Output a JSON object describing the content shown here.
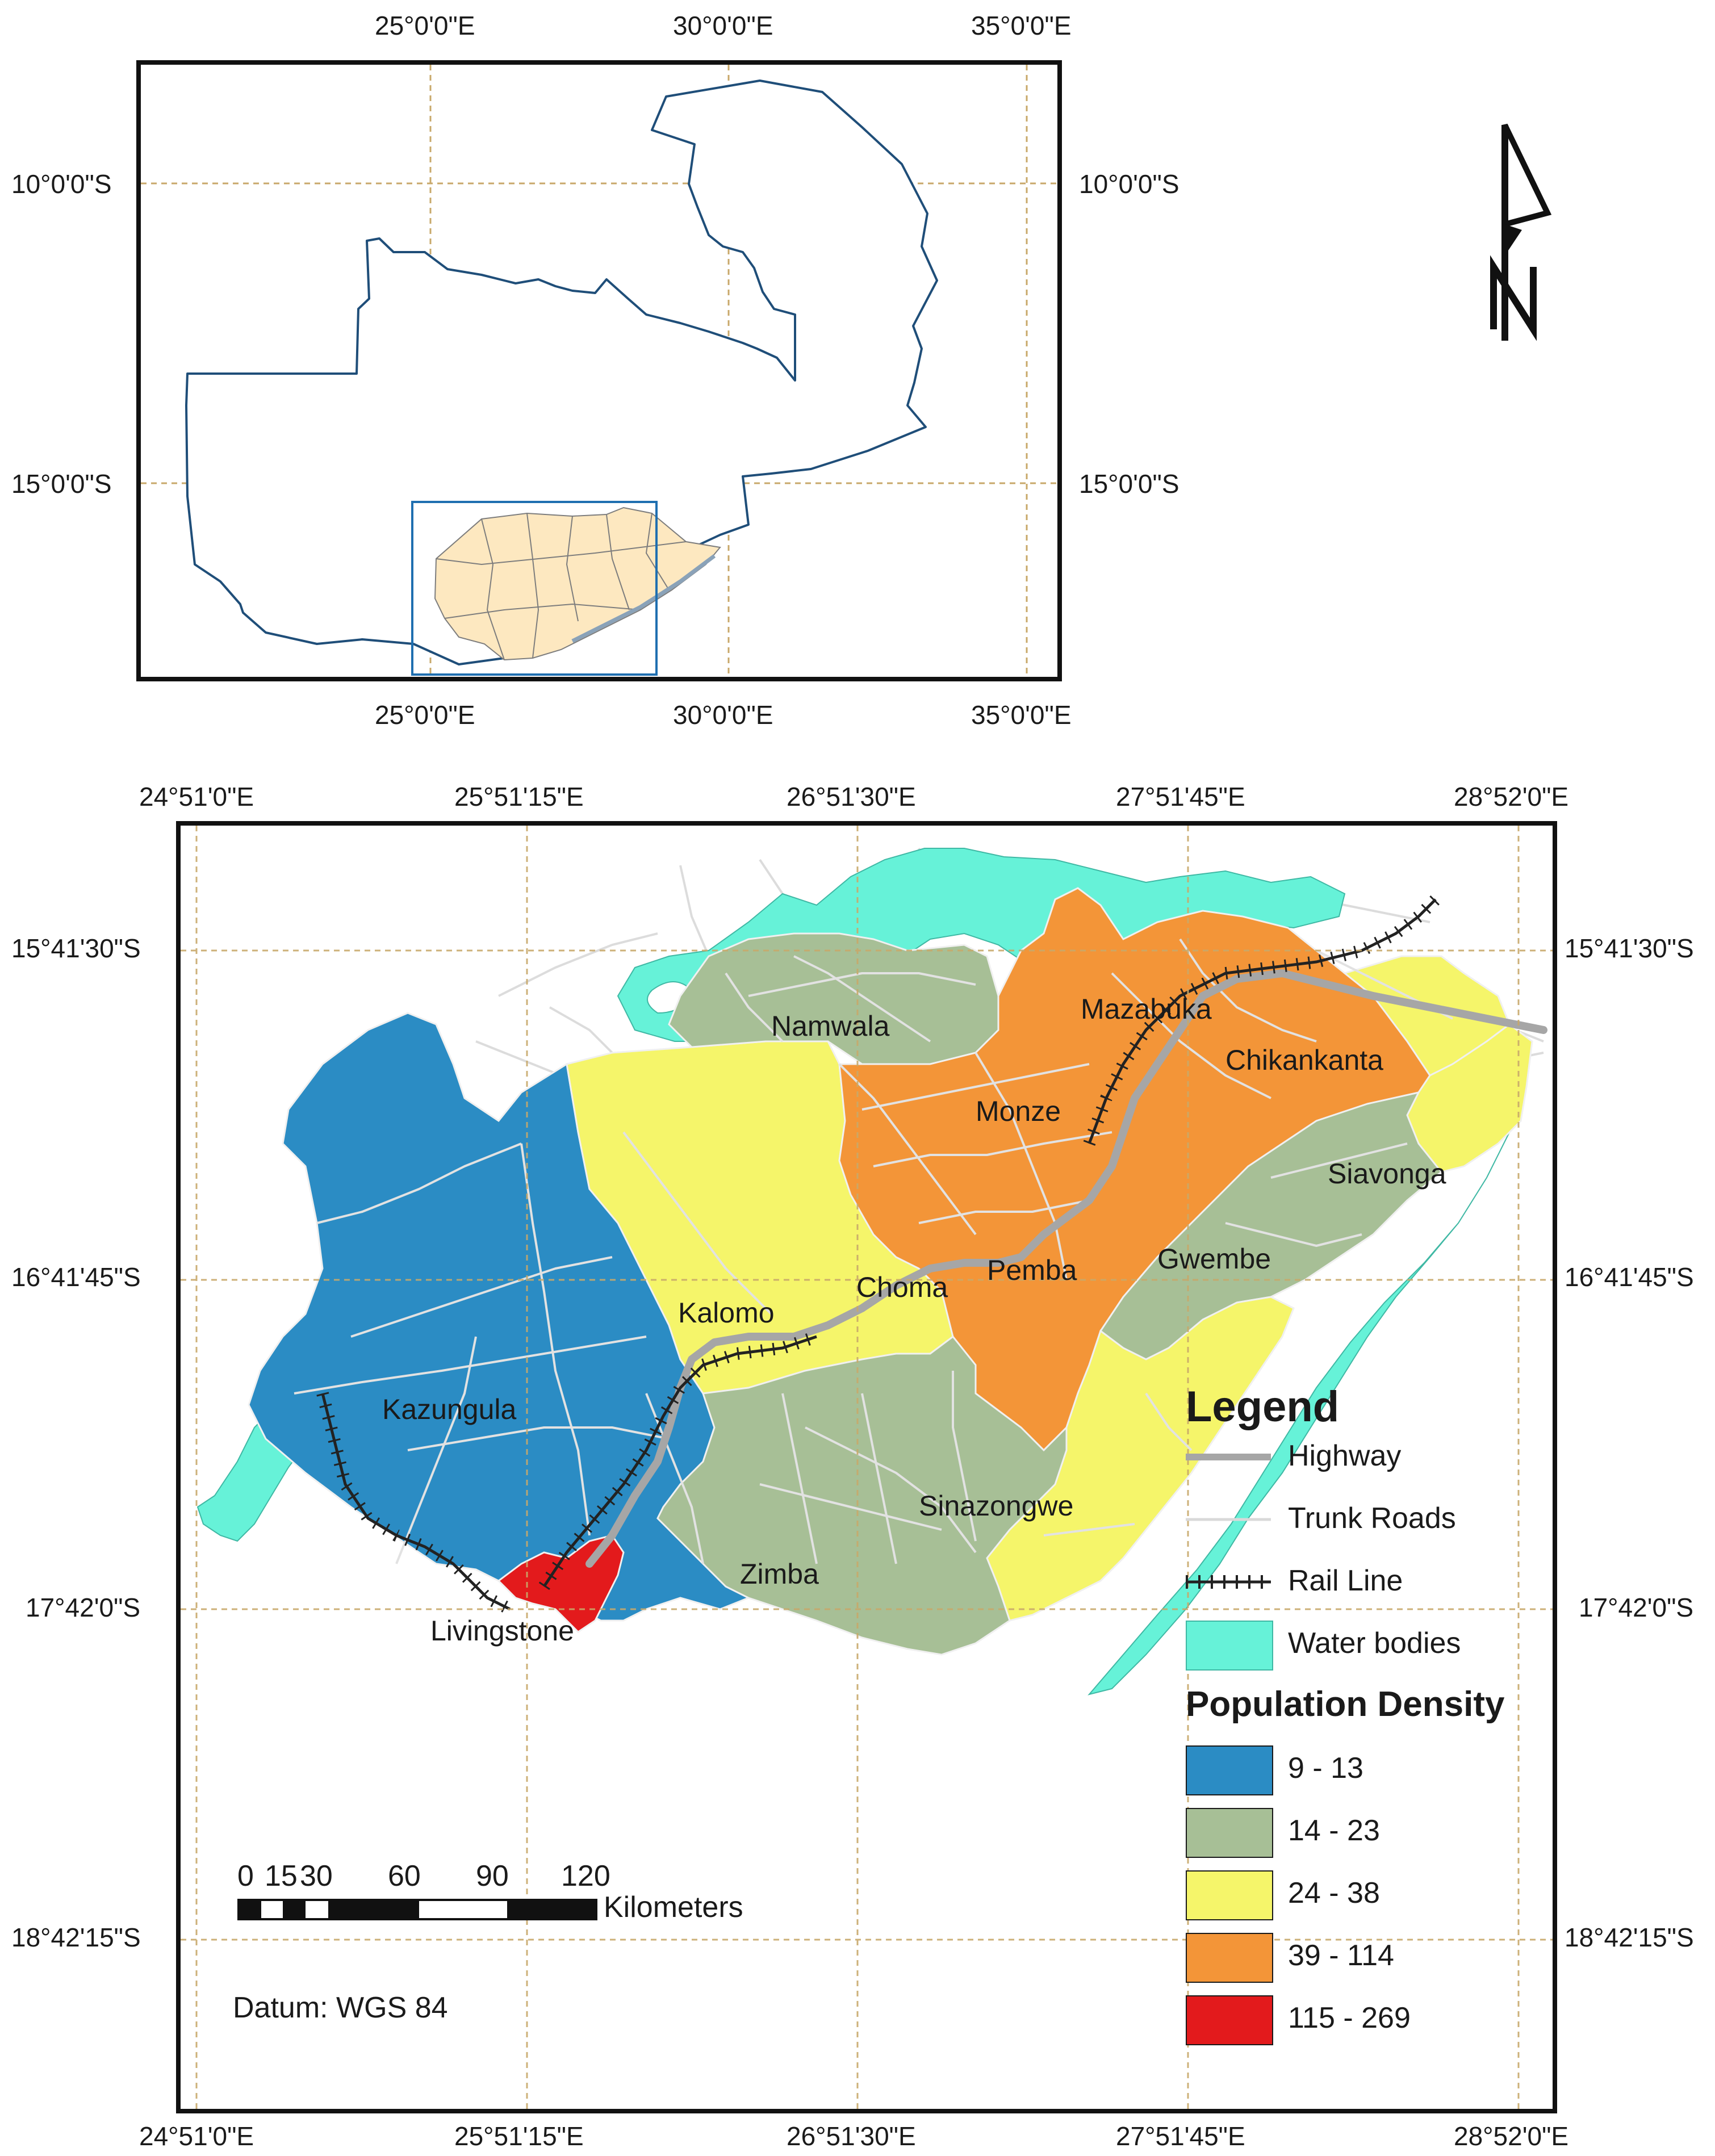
{
  "inset_map": {
    "top_labels": [
      "25°0'0\"E",
      "30°0'0\"E",
      "35°0'0\"E"
    ],
    "bottom_labels": [
      "25°0'0\"E",
      "30°0'0\"E",
      "35°0'0\"E"
    ],
    "left_labels": [
      "10°0'0\"S",
      "15°0'0\"S"
    ],
    "right_labels": [
      "10°0'0\"S",
      "15°0'0\"S"
    ],
    "country_fill": "#ffffff",
    "province_fill": "#fde8c0",
    "outline_color": "#1f4e79"
  },
  "main_map": {
    "top_labels": [
      "24°51'0\"E",
      "25°51'15\"E",
      "26°51'30\"E",
      "27°51'45\"E",
      "28°52'0\"E"
    ],
    "bottom_labels": [
      "24°51'0\"E",
      "25°51'15\"E",
      "26°51'30\"E",
      "27°51'45\"E",
      "28°52'0\"E"
    ],
    "left_labels": [
      "15°41'30\"S",
      "16°41'45\"S",
      "17°42'0\"S",
      "18°42'15\"S"
    ],
    "right_labels": [
      "15°41'30\"S",
      "16°41'45\"S",
      "17°42'0\"S",
      "18°42'15\"S"
    ],
    "districts": {
      "namwala": "Namwala",
      "mazabuka": "Mazabuka",
      "chikankanta": "Chikankanta",
      "monze": "Monze",
      "siavonga": "Siavonga",
      "gwembe": "Gwembe",
      "pemba": "Pemba",
      "choma": "Choma",
      "kalomo": "Kalomo",
      "kazungula": "Kazungula",
      "sinazongwe": "Sinazongwe",
      "zimba": "Zimba",
      "livingstone": "Livingstone"
    },
    "datum": "Datum: WGS 84",
    "scale_bar": {
      "ticks": [
        "0",
        "15",
        "30",
        "60",
        "90",
        "120"
      ],
      "unit": "Kilometers"
    },
    "legend": {
      "title": "Legend",
      "items": [
        {
          "label": "Highway",
          "symbol": "highway-line",
          "color": "#a6a6a6"
        },
        {
          "label": "Trunk Roads",
          "symbol": "trunk-road-line",
          "color": "#d9d9d9"
        },
        {
          "label": "Rail Line",
          "symbol": "rail-line",
          "color": "#222222"
        },
        {
          "label": "Water bodies",
          "symbol": "water-patch",
          "color": "#66f2d8"
        }
      ],
      "density_title": "Population Density",
      "density_classes": [
        {
          "label": "9 - 13",
          "color": "#2b8cc4"
        },
        {
          "label": "14 - 23",
          "color": "#a7bf96"
        },
        {
          "label": "24 - 38",
          "color": "#f5f56a"
        },
        {
          "label": "39 - 114",
          "color": "#f39538"
        },
        {
          "label": "115 - 269",
          "color": "#e31a1c"
        }
      ]
    },
    "north_arrow": "north-arrow-icon"
  }
}
